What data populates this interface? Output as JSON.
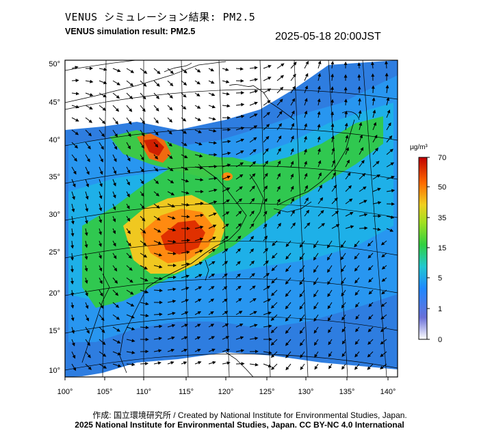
{
  "header": {
    "title_jp": "VENUS シミュレーション結果: PM2.5",
    "title_en": "VENUS simulation result: PM2.5",
    "timestamp": "2025-05-18 20:00JST"
  },
  "map": {
    "lon_labels": [
      "100°",
      "105°",
      "110°",
      "115°",
      "120°",
      "125°",
      "130°",
      "135°",
      "140°"
    ],
    "lat_labels": [
      "10°",
      "15°",
      "20°",
      "25°",
      "30°",
      "35°",
      "40°",
      "45°",
      "50°"
    ]
  },
  "colorbar": {
    "unit": "µg/m³",
    "tick_labels": [
      "0",
      "1",
      "5",
      "15",
      "35",
      "50",
      "70"
    ],
    "colors": [
      "#ffffff",
      "#5a6ad8",
      "#1e90ff",
      "#20d0c0",
      "#30d030",
      "#f0d020",
      "#ff5000",
      "#c00000"
    ]
  },
  "credits": {
    "line1": "作成: 国立環境研究所 / Created by National Institute for Environmental Studies, Japan.",
    "line2": "2025 National Institute for Environmental Studies, Japan. CC BY-NC 4.0 International"
  }
}
